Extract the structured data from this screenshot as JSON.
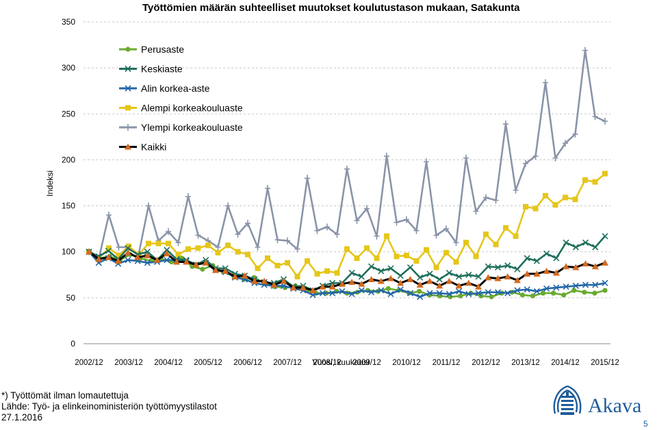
{
  "chart_data": {
    "type": "line",
    "title": "Työttömien määrän suhteelliset muutokset koulutustason mukaan, Satakunta",
    "ylabel": "Indeksi",
    "xlabel": "Vuosi, kuukausi",
    "ylim": [
      0,
      350
    ],
    "yticks": [
      0,
      50,
      100,
      150,
      200,
      250,
      300,
      350
    ],
    "xtick_labels": [
      "2002/12",
      "2003/12",
      "2004/12",
      "2005/12",
      "2006/12",
      "2007/12",
      "2008/12",
      "2009/12",
      "2010/12",
      "2011/12",
      "2012/12",
      "2013/12",
      "2014/12",
      "2015/12"
    ],
    "grid": "horizontal",
    "legend_position": "top-left",
    "series": [
      {
        "name": "Perusaste",
        "color": "#6aaa2f",
        "marker": "circle",
        "values": [
          100,
          93,
          95,
          91,
          97,
          93,
          90,
          92,
          89,
          93,
          84,
          81,
          85,
          78,
          74,
          70,
          72,
          66,
          62,
          61,
          63,
          58,
          55,
          55,
          57,
          55,
          56,
          58,
          57,
          60,
          58,
          55,
          57,
          53,
          52,
          51,
          52,
          55,
          52,
          51,
          55,
          56,
          53,
          52,
          55,
          55,
          53,
          58,
          56,
          55,
          58
        ]
      },
      {
        "name": "Keskiaste",
        "color": "#1f6f5c",
        "marker": "x",
        "values": [
          100,
          95,
          101,
          92,
          104,
          97,
          100,
          91,
          102,
          92,
          91,
          86,
          91,
          82,
          82,
          76,
          74,
          70,
          67,
          66,
          70,
          62,
          63,
          58,
          63,
          66,
          66,
          77,
          73,
          84,
          79,
          82,
          74,
          83,
          72,
          76,
          70,
          77,
          73,
          75,
          73,
          84,
          83,
          85,
          81,
          93,
          90,
          98,
          93,
          110,
          105,
          110,
          105,
          117
        ]
      },
      {
        "name": "Alin korkea-aste",
        "color": "#2266a8",
        "marker": "x",
        "values": [
          100,
          88,
          93,
          87,
          91,
          90,
          88,
          89,
          91,
          91,
          90,
          86,
          88,
          80,
          78,
          72,
          70,
          66,
          64,
          63,
          63,
          60,
          58,
          53,
          55,
          55,
          57,
          54,
          58,
          56,
          58,
          54,
          59,
          55,
          51,
          55,
          55,
          54,
          57,
          54,
          55,
          56,
          56,
          55,
          58,
          59,
          57,
          60,
          61,
          62,
          63,
          64,
          64,
          66
        ]
      },
      {
        "name": "Alempi korkeakouluaste",
        "color": "#e6c619",
        "marker": "square",
        "values": [
          100,
          93,
          104,
          96,
          106,
          97,
          109,
          109,
          109,
          97,
          103,
          104,
          107,
          99,
          107,
          100,
          97,
          82,
          93,
          85,
          88,
          73,
          90,
          76,
          79,
          77,
          103,
          93,
          104,
          93,
          117,
          95,
          96,
          90,
          102,
          83,
          99,
          89,
          110,
          95,
          119,
          108,
          126,
          117,
          149,
          147,
          161,
          151,
          159,
          157,
          178,
          176,
          185
        ]
      },
      {
        "name": "Ylempi korkeakouluaste",
        "color": "#8a94a8",
        "marker": "plus",
        "values": [
          100,
          93,
          140,
          105,
          105,
          97,
          150,
          112,
          122,
          110,
          160,
          118,
          112,
          105,
          150,
          119,
          131,
          105,
          169,
          113,
          112,
          103,
          180,
          123,
          127,
          119,
          190,
          134,
          147,
          117,
          204,
          132,
          135,
          123,
          198,
          118,
          125,
          110,
          202,
          144,
          159,
          156,
          239,
          167,
          196,
          204,
          284,
          202,
          218,
          228,
          319,
          247,
          242
        ]
      },
      {
        "name": "Kaikki",
        "color": "#000000",
        "marker": "triangle",
        "marker_color": "#d46a1e",
        "values": [
          100,
          92,
          94,
          90,
          99,
          94,
          96,
          91,
          98,
          89,
          89,
          86,
          88,
          80,
          79,
          73,
          74,
          68,
          68,
          64,
          68,
          61,
          61,
          58,
          62,
          62,
          65,
          67,
          65,
          70,
          68,
          71,
          66,
          70,
          64,
          68,
          63,
          68,
          63,
          66,
          62,
          72,
          71,
          73,
          69,
          76,
          76,
          79,
          77,
          84,
          83,
          87,
          84,
          88
        ]
      }
    ]
  },
  "footer": {
    "line1": "*) Työttömät ilman lomautettuja",
    "line2": "Lähde: Työ- ja elinkeinoministeriön työttömyystilastot",
    "line3": "27.1.2016"
  },
  "logo": {
    "text": "Akava",
    "color": "#1f5b9a"
  },
  "page_number": "5"
}
